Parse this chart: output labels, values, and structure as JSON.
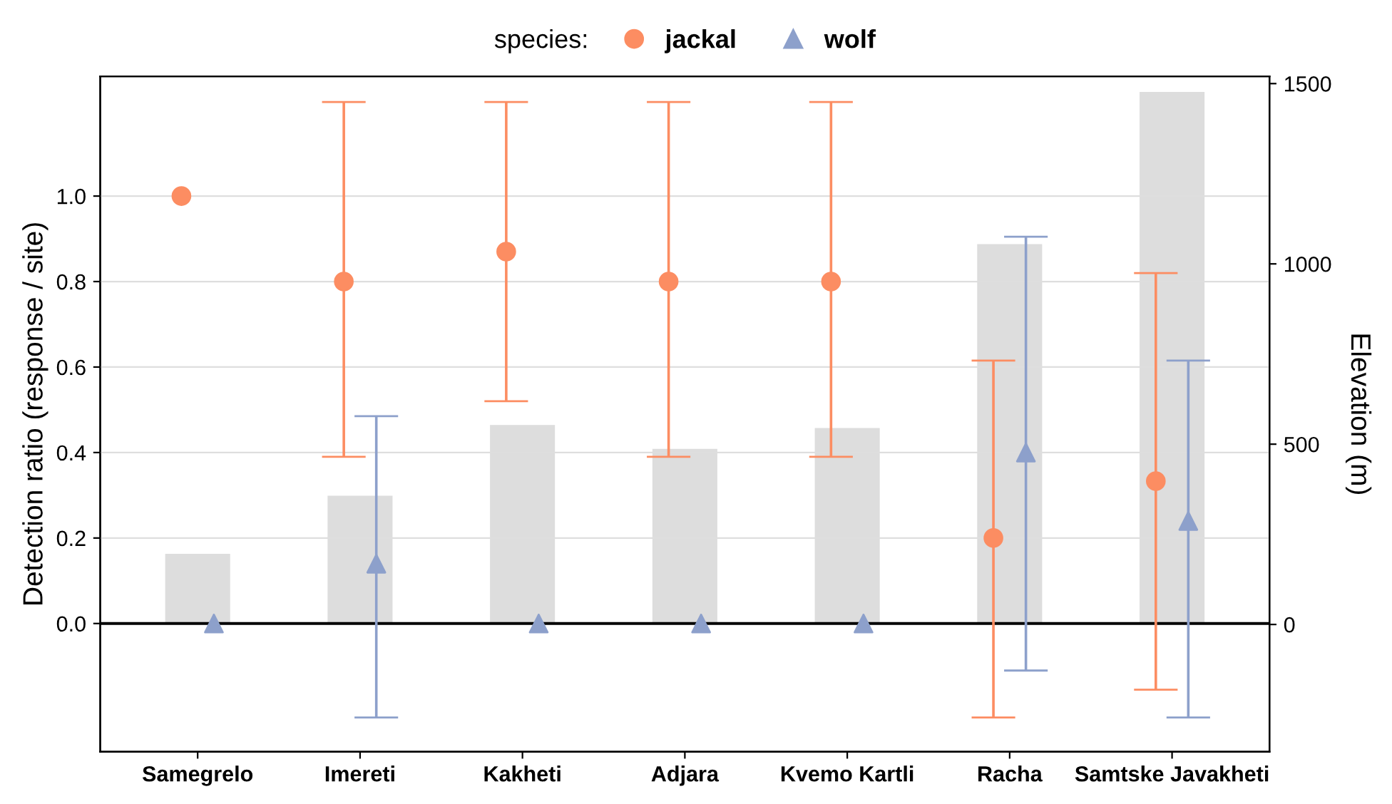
{
  "chart_data": {
    "type": "scatter",
    "categories": [
      "Samegrelo",
      "Imereti",
      "Kakheti",
      "Adjara",
      "Kvemo Kartli",
      "Racha",
      "Samtske Javakheti"
    ],
    "ylabel": "Detection ratio (response / site)",
    "y2label": "Elevation (m)",
    "legend_title": "species:",
    "legend": "top",
    "grid": "y",
    "ylim": [
      -0.3,
      1.28
    ],
    "yticks": [
      {
        "value": 0,
        "label": "0.0"
      },
      0.2,
      0.4,
      0.6,
      0.8,
      {
        "value": 1,
        "label": "1.0"
      }
    ],
    "y2lim": [
      -353,
      1520
    ],
    "y2ticks": [
      0,
      500,
      1000,
      1500
    ],
    "ref_lines": [
      {
        "axis": "y",
        "value": 0,
        "color": "#000000"
      }
    ],
    "series": [
      {
        "type": "bar",
        "axis": "y2",
        "color": "#dddddd",
        "values": [
          196,
          357,
          553,
          487,
          545,
          1055,
          1477
        ]
      },
      {
        "name": "jackal",
        "color": "#fc8d62",
        "marker": "circle",
        "values": [
          1.0,
          0.8,
          0.87,
          0.8,
          0.8,
          0.2,
          0.333
        ],
        "errors": [
          null,
          [
            0.39,
            1.22
          ],
          [
            0.52,
            1.22
          ],
          [
            0.39,
            1.22
          ],
          [
            0.39,
            1.22
          ],
          [
            -0.22,
            0.615
          ],
          [
            -0.155,
            0.82
          ]
        ]
      },
      {
        "name": "wolf",
        "color": "#8da0cb",
        "marker": "triangle",
        "values": [
          0.0,
          0.14,
          0.0,
          0.0,
          0.0,
          0.4,
          0.24
        ],
        "errors": [
          null,
          [
            -0.22,
            0.485
          ],
          null,
          null,
          null,
          [
            -0.11,
            0.905
          ],
          [
            -0.22,
            0.615
          ]
        ]
      }
    ]
  }
}
